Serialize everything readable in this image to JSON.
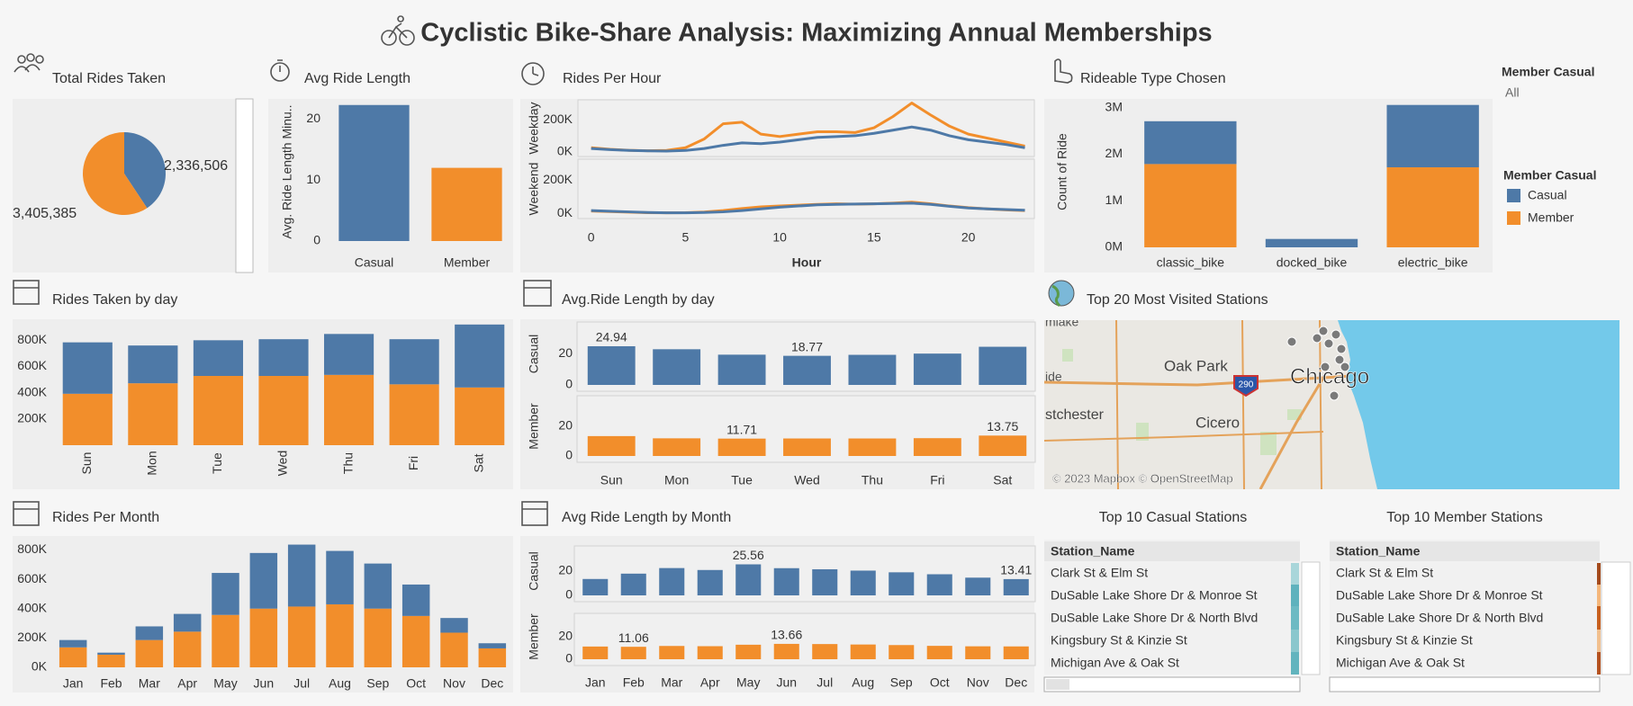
{
  "title": "Cyclistic Bike-Share Analysis: Maximizing Annual Memberships",
  "filter": {
    "label": "Member Casual",
    "value": "All"
  },
  "legend": {
    "title": "Member Casual",
    "items": [
      {
        "name": "Casual",
        "color": "#4e79a7"
      },
      {
        "name": "Member",
        "color": "#f28e2b"
      }
    ]
  },
  "chart_data": [
    {
      "type": "pie",
      "title": "Total Rides Taken",
      "values": [
        2336506,
        3405385
      ],
      "value_labels": [
        "2,336,506",
        "3,405,385"
      ],
      "colors": [
        "#4e79a7",
        "#f28e2b"
      ]
    },
    {
      "type": "bar",
      "title": "Avg Ride Length",
      "ylabel": "Avg. Ride Length Minu..",
      "categories": [
        "Casual",
        "Member"
      ],
      "values": [
        22.3,
        12.0
      ],
      "colors": [
        "#4e79a7",
        "#f28e2b"
      ],
      "ylim": [
        0,
        23
      ],
      "yticks": [
        0,
        10,
        20
      ]
    },
    {
      "type": "line",
      "title": "Rides Per Hour",
      "xlabel": "Hour",
      "x": [
        0,
        1,
        2,
        3,
        4,
        5,
        6,
        7,
        8,
        9,
        10,
        11,
        12,
        13,
        14,
        15,
        16,
        17,
        18,
        19,
        20,
        21,
        22,
        23
      ],
      "xlim": [
        -0.7,
        23.5
      ],
      "xticks": [
        0,
        5,
        10,
        15,
        20
      ],
      "panes": [
        {
          "label": "Weekday",
          "ylim": [
            -30000,
            325000
          ],
          "yticks": [
            {
              "value": 0,
              "label": "0K"
            },
            {
              "value": 200000,
              "label": "200K"
            }
          ],
          "series": [
            {
              "color": "#f28e2b",
              "values": [
                25000,
                15000,
                9000,
                6000,
                8000,
                25000,
                80000,
                175000,
                185000,
                110000,
                95000,
                110000,
                125000,
                125000,
                120000,
                150000,
                220000,
                305000,
                230000,
                160000,
                110000,
                85000,
                60000,
                35000
              ]
            },
            {
              "color": "#4e79a7",
              "values": [
                20000,
                13000,
                8000,
                5000,
                4000,
                8000,
                20000,
                40000,
                55000,
                50000,
                60000,
                75000,
                90000,
                95000,
                100000,
                115000,
                135000,
                155000,
                135000,
                100000,
                75000,
                60000,
                45000,
                25000
              ]
            }
          ]
        },
        {
          "label": "Weekend",
          "ylim": [
            -30000,
            325000
          ],
          "yticks": [
            {
              "value": 0,
              "label": "0K"
            },
            {
              "value": 200000,
              "label": "200K"
            }
          ],
          "series": [
            {
              "color": "#f28e2b",
              "values": [
                15000,
                12000,
                8000,
                5000,
                4000,
                5000,
                9000,
                18000,
                30000,
                40000,
                45000,
                50000,
                55000,
                58000,
                56000,
                58000,
                62000,
                68000,
                58000,
                45000,
                35000,
                28000,
                22000,
                18000
              ]
            },
            {
              "color": "#4e79a7",
              "values": [
                18000,
                14000,
                10000,
                6000,
                4000,
                4000,
                6000,
                10000,
                18000,
                28000,
                38000,
                45000,
                52000,
                55000,
                57000,
                58000,
                60000,
                62000,
                55000,
                43000,
                33000,
                28000,
                24000,
                20000
              ]
            }
          ]
        }
      ]
    },
    {
      "type": "stacked_bar",
      "title": "Rideable Type Chosen",
      "ylabel": "Count of Ride",
      "categories": [
        "classic_bike",
        "docked_bike",
        "electric_bike"
      ],
      "series": [
        {
          "color": "#f28e2b",
          "values": [
            1790000,
            null,
            1720000
          ]
        },
        {
          "color": "#4e79a7",
          "values": [
            920000,
            180000,
            1340000
          ]
        }
      ],
      "ylim": [
        0,
        3170000
      ],
      "yticks": [
        {
          "value": 0,
          "label": "0M"
        },
        {
          "value": 1000000,
          "label": "1M"
        },
        {
          "value": 2000000,
          "label": "2M"
        },
        {
          "value": 3000000,
          "label": "3M"
        }
      ]
    },
    {
      "type": "stacked_bar",
      "title": "Rides Taken by day",
      "categories": [
        "Sun",
        "Mon",
        "Tue",
        "Wed",
        "Thu",
        "Fri",
        "Sat"
      ],
      "series": [
        {
          "color": "#f28e2b",
          "values": [
            392000,
            472000,
            528000,
            528000,
            536000,
            464000,
            440000
          ]
        },
        {
          "color": "#4e79a7",
          "values": [
            392000,
            288000,
            272000,
            280000,
            312000,
            344000,
            480000
          ]
        }
      ],
      "ylim": [
        0,
        960000
      ],
      "yticks": [
        {
          "value": 200000,
          "label": "200K"
        },
        {
          "value": 400000,
          "label": "400K"
        },
        {
          "value": 600000,
          "label": "600K"
        },
        {
          "value": 800000,
          "label": "800K"
        }
      ]
    },
    {
      "type": "paned_bar",
      "title": "Avg.Ride Length by day",
      "categories": [
        "Sun",
        "Mon",
        "Tue",
        "Wed",
        "Thu",
        "Fri",
        "Sat"
      ],
      "data_labels": "min_max",
      "panes": [
        {
          "label": "Casual",
          "color": "#4e79a7",
          "values": [
            24.94,
            23.0,
            19.5,
            18.77,
            19.4,
            20.2,
            24.6
          ],
          "ylim": [
            0,
            40
          ],
          "yticks": [
            0,
            20
          ]
        },
        {
          "label": "Member",
          "color": "#f28e2b",
          "values": [
            13.4,
            11.9,
            11.71,
            11.8,
            11.8,
            12.0,
            13.75
          ],
          "ylim": [
            0,
            40
          ],
          "yticks": [
            0,
            20
          ]
        }
      ]
    },
    {
      "type": "stacked_bar",
      "title": "Rides Per Month",
      "categories": [
        "Jan",
        "Feb",
        "Mar",
        "Apr",
        "May",
        "Jun",
        "Jul",
        "Aug",
        "Sep",
        "Oct",
        "Nov",
        "Dec"
      ],
      "series": [
        {
          "color": "#f28e2b",
          "values": [
            136000,
            86000,
            186000,
            243000,
            357000,
            400000,
            414000,
            429000,
            400000,
            350000,
            236000,
            129000
          ]
        },
        {
          "color": "#4e79a7",
          "values": [
            50000,
            14000,
            93000,
            121000,
            286000,
            379000,
            422000,
            364000,
            307000,
            214000,
            100000,
            35000
          ]
        }
      ],
      "ylim": [
        0,
        870000
      ],
      "yticks": [
        {
          "value": 0,
          "label": "0K"
        },
        {
          "value": 200000,
          "label": "200K"
        },
        {
          "value": 400000,
          "label": "400K"
        },
        {
          "value": 600000,
          "label": "600K"
        },
        {
          "value": 800000,
          "label": "800K"
        }
      ]
    },
    {
      "type": "paned_bar",
      "title": "Avg Ride Length by Month",
      "categories": [
        "Jan",
        "Feb",
        "Mar",
        "Apr",
        "May",
        "Jun",
        "Jul",
        "Aug",
        "Sep",
        "Oct",
        "Nov",
        "Dec"
      ],
      "data_labels": "min_max",
      "panes": [
        {
          "label": "Casual",
          "color": "#4e79a7",
          "values": [
            13.5,
            17.9,
            22.5,
            20.9,
            25.56,
            22.4,
            21.5,
            20.4,
            19.0,
            17.4,
            14.6,
            13.41
          ],
          "ylim": [
            0,
            40
          ],
          "yticks": [
            0,
            20
          ]
        },
        {
          "label": "Member",
          "color": "#f28e2b",
          "values": [
            11.3,
            11.06,
            11.8,
            11.6,
            12.9,
            13.66,
            13.5,
            13.1,
            12.6,
            11.9,
            11.5,
            11.4
          ],
          "ylim": [
            0,
            40
          ],
          "yticks": [
            0,
            20
          ]
        }
      ]
    }
  ],
  "map": {
    "title": "Top 20 Most Visited Stations",
    "place_labels": [
      "mlake",
      "ide",
      "Oak Park",
      "stchester",
      "Cicero",
      "Chicago"
    ],
    "shield": "290",
    "attribution": "© 2023 Mapbox © OpenStreetMap"
  },
  "tables": [
    {
      "title": "Top 10 Casual Stations",
      "header": "Station_Name",
      "rows": [
        "Clark St & Elm St",
        "DuSable Lake Shore Dr & Monroe St",
        "DuSable Lake Shore Dr & North Blvd",
        "Kingsbury St & Kinzie St",
        "Michigan Ave & Oak St"
      ]
    },
    {
      "title": "Top 10 Member Stations",
      "header": "Station_Name",
      "rows": [
        "Clark St & Elm St",
        "DuSable Lake Shore Dr & Monroe St",
        "DuSable Lake Shore Dr & North Blvd",
        "Kingsbury St & Kinzie St",
        "Michigan Ave & Oak St"
      ]
    }
  ]
}
